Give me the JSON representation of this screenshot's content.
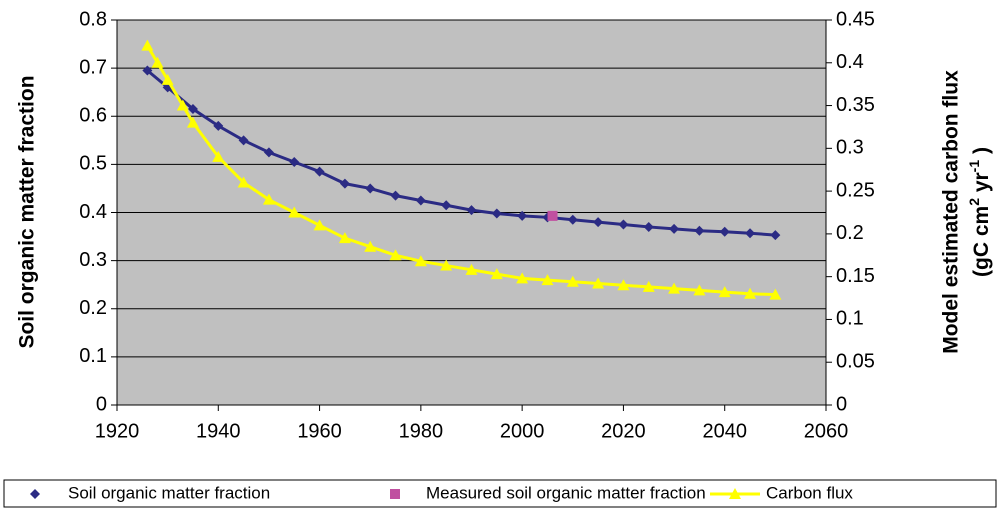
{
  "chart_data": {
    "type": "line",
    "y_label": "Soil organic matter fraction",
    "y2_label": {
      "line1": "Model estimated carbon flux",
      "line2": [
        "(gC cm",
        "2",
        " yr",
        "-1",
        " )"
      ]
    },
    "xlim": [
      1920,
      2060
    ],
    "xticks": [
      1920,
      1940,
      1960,
      1980,
      2000,
      2020,
      2040,
      2060
    ],
    "ylim": [
      0,
      0.8
    ],
    "yticks": [
      0,
      0.1,
      0.2,
      0.3,
      0.4,
      0.5,
      0.6,
      0.7,
      0.8
    ],
    "y2lim": [
      0,
      0.45
    ],
    "y2ticks": [
      0,
      0.05,
      0.1,
      0.15,
      0.2,
      0.25,
      0.3,
      0.35,
      0.4,
      0.45
    ],
    "grid": true,
    "legend": "bottom",
    "series": [
      {
        "name": "Soil organic matter fraction",
        "color": "#2b2b84",
        "marker": "diamond",
        "x": [
          1926,
          1930,
          1935,
          1940,
          1945,
          1950,
          1955,
          1960,
          1965,
          1970,
          1975,
          1980,
          1985,
          1990,
          1995,
          2000,
          2005,
          2010,
          2015,
          2020,
          2025,
          2030,
          2035,
          2040,
          2045,
          2050
        ],
        "values": [
          0.695,
          0.66,
          0.615,
          0.58,
          0.55,
          0.525,
          0.505,
          0.485,
          0.46,
          0.45,
          0.435,
          0.425,
          0.415,
          0.405,
          0.398,
          0.393,
          0.39,
          0.385,
          0.38,
          0.375,
          0.37,
          0.366,
          0.362,
          0.36,
          0.357,
          0.353
        ]
      },
      {
        "name": "Measured soil organic matter fraction",
        "color": "#c050a0",
        "marker": "square",
        "x": [
          2006
        ],
        "values": [
          0.393
        ]
      },
      {
        "name": "Carbon flux",
        "color": "#ffff00",
        "marker": "triangle",
        "axis": "y2",
        "x": [
          1926,
          1928,
          1930,
          1933,
          1935,
          1940,
          1945,
          1950,
          1955,
          1960,
          1965,
          1970,
          1975,
          1980,
          1985,
          1990,
          1995,
          2000,
          2005,
          2010,
          2015,
          2020,
          2025,
          2030,
          2035,
          2040,
          2045,
          2050
        ],
        "values": [
          0.42,
          0.4,
          0.38,
          0.35,
          0.33,
          0.29,
          0.26,
          0.24,
          0.225,
          0.21,
          0.195,
          0.185,
          0.175,
          0.168,
          0.163,
          0.158,
          0.153,
          0.148,
          0.146,
          0.144,
          0.142,
          0.14,
          0.138,
          0.136,
          0.134,
          0.132,
          0.13,
          0.129
        ]
      }
    ]
  }
}
